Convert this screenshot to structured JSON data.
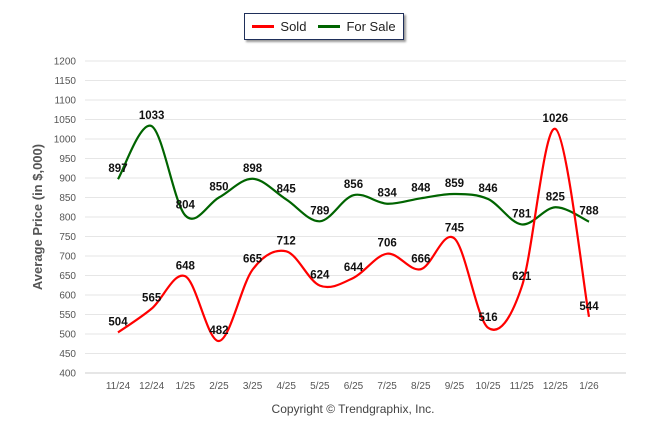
{
  "chart_data": {
    "type": "line",
    "title": "",
    "xlabel": "Copyright © Trendgraphix, Inc.",
    "ylabel": "Average Price (in $,000)",
    "ylim": [
      400,
      1200
    ],
    "yticks": [
      400,
      450,
      500,
      550,
      600,
      650,
      700,
      750,
      800,
      850,
      900,
      950,
      1000,
      1050,
      1100,
      1150,
      1200
    ],
    "categories": [
      "11/24",
      "12/24",
      "1/25",
      "2/25",
      "3/25",
      "4/25",
      "5/25",
      "6/25",
      "7/25",
      "8/25",
      "9/25",
      "10/25",
      "11/25",
      "12/25",
      "1/26"
    ],
    "series": [
      {
        "name": "Sold",
        "color": "#ff0000",
        "values": [
          504,
          565,
          648,
          482,
          665,
          712,
          624,
          644,
          706,
          666,
          745,
          516,
          621,
          1026,
          544
        ]
      },
      {
        "name": "For Sale",
        "color": "#006400",
        "values": [
          897,
          1033,
          804,
          850,
          898,
          845,
          789,
          856,
          834,
          848,
          859,
          846,
          781,
          825,
          788
        ]
      }
    ],
    "grid": true,
    "legend": "top-center"
  }
}
